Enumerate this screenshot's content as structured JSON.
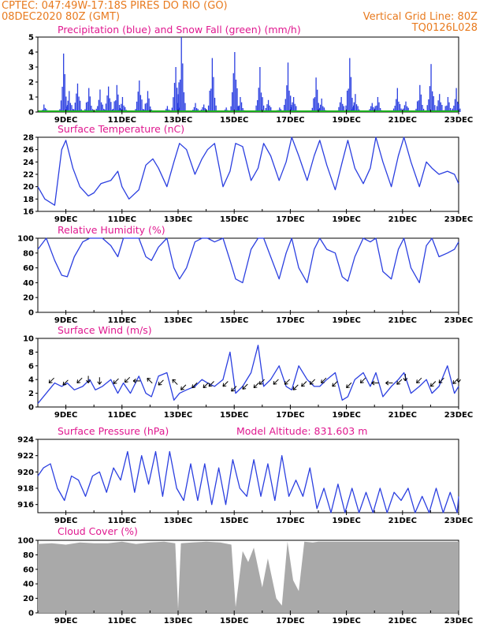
{
  "header": {
    "line1_left": "CPTEC:   047:49W-17:18S   PIRES DO RIO (GO)",
    "line2_left": "08DEC2020 80Z (GMT)",
    "line2_right": "Vertical Grid Line: 80Z",
    "line3_right": "TQ0126L028"
  },
  "colors": {
    "header": "#e87a1e",
    "title": "#e0188f",
    "line": "#2b3fe0",
    "bar": "#2b3fe0",
    "snow": "#1cb01c",
    "cloud": "#a9a9a9"
  },
  "x_ticks": [
    "9DEC",
    "11DEC",
    "13DEC",
    "15DEC",
    "17DEC",
    "19DEC",
    "21DEC",
    "23DEC"
  ],
  "chart_data": [
    {
      "type": "bar",
      "title": "Precipitation (blue) and Snow Fall (green) (mm/h)",
      "ylim": [
        0,
        5
      ],
      "yticks": [
        "0",
        "1",
        "2",
        "3",
        "4",
        "5"
      ],
      "series": [
        {
          "name": "Precipitation",
          "peaks": [
            [
              8.2,
              0.5
            ],
            [
              8.9,
              3.9
            ],
            [
              9.1,
              1.4
            ],
            [
              9.4,
              1.9
            ],
            [
              9.8,
              1.6
            ],
            [
              10.2,
              1.5
            ],
            [
              10.5,
              1.7
            ],
            [
              10.8,
              1.8
            ],
            [
              11.0,
              1.0
            ],
            [
              11.6,
              2.1
            ],
            [
              11.9,
              1.4
            ],
            [
              12.6,
              0.4
            ],
            [
              12.9,
              3.0
            ],
            [
              13.1,
              5.0
            ],
            [
              13.6,
              0.6
            ],
            [
              13.9,
              0.5
            ],
            [
              14.2,
              3.6
            ],
            [
              14.7,
              0.3
            ],
            [
              15.0,
              4.0
            ],
            [
              15.2,
              1.0
            ],
            [
              15.9,
              3.0
            ],
            [
              16.2,
              0.8
            ],
            [
              16.6,
              0.3
            ],
            [
              16.9,
              3.3
            ],
            [
              17.1,
              1.0
            ],
            [
              17.9,
              2.3
            ],
            [
              18.1,
              0.9
            ],
            [
              18.8,
              1.0
            ],
            [
              19.1,
              3.6
            ],
            [
              19.3,
              1.2
            ],
            [
              19.9,
              0.6
            ],
            [
              20.1,
              1.0
            ],
            [
              20.8,
              1.6
            ],
            [
              21.1,
              0.7
            ],
            [
              21.6,
              1.8
            ],
            [
              22.0,
              3.2
            ],
            [
              22.3,
              1.2
            ],
            [
              22.6,
              1.0
            ],
            [
              22.9,
              1.6
            ]
          ]
        },
        {
          "name": "Snow Fall",
          "values": [
            0
          ]
        }
      ]
    },
    {
      "type": "line",
      "title": "Surface Temperature (nC)",
      "ylim": [
        16,
        28
      ],
      "yticks": [
        "16",
        "18",
        "20",
        "22",
        "24",
        "26",
        "28"
      ],
      "series": [
        {
          "name": "Temperature",
          "x": [
            8.0,
            8.25,
            8.6,
            8.85,
            9.0,
            9.25,
            9.5,
            9.8,
            10.0,
            10.25,
            10.6,
            10.85,
            11.0,
            11.25,
            11.6,
            11.85,
            12.1,
            12.3,
            12.6,
            12.85,
            13.05,
            13.3,
            13.6,
            13.85,
            14.05,
            14.3,
            14.6,
            14.85,
            15.05,
            15.3,
            15.6,
            15.85,
            16.05,
            16.3,
            16.6,
            16.85,
            17.05,
            17.3,
            17.6,
            17.85,
            18.05,
            18.3,
            18.6,
            18.85,
            19.05,
            19.3,
            19.6,
            19.85,
            20.05,
            20.3,
            20.6,
            20.85,
            21.05,
            21.3,
            21.6,
            21.85,
            22.05,
            22.3,
            22.6,
            22.85,
            23.0
          ],
          "values": [
            20,
            18,
            17,
            26,
            27.5,
            23,
            20,
            18.5,
            19,
            20.5,
            21,
            22.5,
            20,
            18,
            19.5,
            23.5,
            24.5,
            23,
            20,
            24,
            27,
            26,
            22,
            24.5,
            26,
            27,
            20,
            22.5,
            27,
            26.5,
            21,
            23,
            27,
            25,
            21,
            24,
            28,
            25,
            21,
            25,
            27.5,
            23.5,
            19.5,
            24,
            27.5,
            23,
            20.5,
            23,
            28,
            24,
            20,
            25,
            28,
            24,
            20,
            24,
            23,
            22,
            22.5,
            22,
            20.5
          ]
        }
      ]
    },
    {
      "type": "line",
      "title": "Relative Humidity (%)",
      "ylim": [
        0,
        100
      ],
      "yticks": [
        "0",
        "20",
        "40",
        "60",
        "80",
        "100"
      ],
      "series": [
        {
          "name": "Relative Humidity",
          "x": [
            8.0,
            8.3,
            8.6,
            8.85,
            9.05,
            9.3,
            9.6,
            9.85,
            10.05,
            10.3,
            10.6,
            10.85,
            11.05,
            11.3,
            11.6,
            11.85,
            12.05,
            12.3,
            12.6,
            12.85,
            13.05,
            13.3,
            13.6,
            13.85,
            14.05,
            14.3,
            14.6,
            14.85,
            15.05,
            15.3,
            15.6,
            15.85,
            16.05,
            16.3,
            16.6,
            16.85,
            17.05,
            17.3,
            17.6,
            17.85,
            18.05,
            18.3,
            18.6,
            18.85,
            19.05,
            19.3,
            19.6,
            19.85,
            20.05,
            20.3,
            20.6,
            20.85,
            21.05,
            21.3,
            21.6,
            21.85,
            22.05,
            22.3,
            22.6,
            22.85,
            23.0
          ],
          "values": [
            85,
            100,
            70,
            50,
            48,
            75,
            95,
            100,
            100,
            100,
            90,
            75,
            100,
            100,
            100,
            75,
            70,
            88,
            100,
            60,
            45,
            60,
            95,
            100,
            100,
            95,
            100,
            70,
            45,
            40,
            85,
            100,
            100,
            75,
            45,
            80,
            100,
            60,
            40,
            85,
            100,
            85,
            80,
            48,
            42,
            75,
            100,
            95,
            100,
            55,
            45,
            85,
            100,
            60,
            40,
            90,
            100,
            75,
            80,
            85,
            95
          ]
        }
      ]
    },
    {
      "type": "line",
      "title": "Surface Wind (m/s)",
      "ylim": [
        0,
        10
      ],
      "yticks": [
        "0",
        "2",
        "4",
        "6",
        "8",
        "10"
      ],
      "series": [
        {
          "name": "Wind Speed",
          "x": [
            8.0,
            8.3,
            8.6,
            8.85,
            9.05,
            9.3,
            9.6,
            9.85,
            10.05,
            10.3,
            10.6,
            10.85,
            11.05,
            11.3,
            11.6,
            11.85,
            12.05,
            12.3,
            12.6,
            12.85,
            13.05,
            13.3,
            13.6,
            13.85,
            14.05,
            14.3,
            14.6,
            14.85,
            15.05,
            15.3,
            15.6,
            15.85,
            16.05,
            16.3,
            16.6,
            16.85,
            17.05,
            17.3,
            17.6,
            17.85,
            18.05,
            18.3,
            18.6,
            18.85,
            19.05,
            19.3,
            19.6,
            19.85,
            20.05,
            20.3,
            20.6,
            20.85,
            21.05,
            21.3,
            21.6,
            21.85,
            22.05,
            22.3,
            22.6,
            22.85,
            23.0
          ],
          "values": [
            0.5,
            2,
            3.5,
            3,
            3.5,
            2.5,
            3,
            4,
            2.5,
            3,
            4,
            2,
            3.5,
            2,
            4.5,
            2,
            1.5,
            4.5,
            5,
            1,
            2,
            2.5,
            3,
            4,
            3.5,
            3,
            4,
            8,
            2,
            3,
            5,
            9,
            3,
            4,
            6,
            3,
            2.5,
            6,
            4,
            3,
            3,
            4,
            5,
            1,
            1.5,
            4,
            5,
            3,
            5,
            1.5,
            3,
            4,
            5,
            2,
            3,
            4,
            2,
            3,
            6,
            2,
            3
          ]
        },
        {
          "name": "Wind Direction",
          "arrows": [
            [
              8.4,
              3.5,
              "sw"
            ],
            [
              8.9,
              3.2,
              "sw"
            ],
            [
              9.4,
              3.5,
              "sw"
            ],
            [
              9.8,
              3.5,
              "s"
            ],
            [
              10.2,
              3.3,
              "s"
            ],
            [
              10.7,
              3.4,
              "sw"
            ],
            [
              11.1,
              3.6,
              "sw"
            ],
            [
              11.4,
              3.8,
              "w"
            ],
            [
              11.9,
              4.2,
              "nw"
            ],
            [
              12.3,
              3.2,
              "sw"
            ],
            [
              12.8,
              4.0,
              "nw"
            ],
            [
              13.1,
              2.5,
              "sw"
            ],
            [
              13.5,
              2.8,
              "sw"
            ],
            [
              13.9,
              2.8,
              "sw"
            ],
            [
              14.1,
              3.0,
              "sw"
            ],
            [
              14.6,
              3.0,
              "sw"
            ],
            [
              14.9,
              2.3,
              "sw"
            ],
            [
              15.3,
              2.6,
              "sw"
            ],
            [
              15.7,
              2.8,
              "sw"
            ],
            [
              15.9,
              3.3,
              "sw"
            ],
            [
              16.4,
              3.3,
              "sw"
            ],
            [
              16.8,
              3.3,
              "sw"
            ],
            [
              17.1,
              2.5,
              "sw"
            ],
            [
              17.4,
              3.0,
              "sw"
            ],
            [
              17.7,
              3.3,
              "sw"
            ],
            [
              18.1,
              3.5,
              "sw"
            ],
            [
              18.5,
              3.0,
              "sw"
            ],
            [
              19.0,
              2.8,
              "sw"
            ],
            [
              19.5,
              3.5,
              "sw"
            ],
            [
              19.9,
              3.5,
              "w"
            ],
            [
              20.4,
              3.5,
              "w"
            ],
            [
              20.8,
              3.3,
              "sw"
            ],
            [
              21.1,
              3.8,
              "s"
            ],
            [
              21.5,
              3.5,
              "sw"
            ],
            [
              22.0,
              3.0,
              "sw"
            ],
            [
              22.3,
              3.5,
              "sw"
            ],
            [
              22.8,
              3.4,
              "sw"
            ],
            [
              23.0,
              3.6,
              "s"
            ]
          ]
        }
      ]
    },
    {
      "type": "line",
      "title": "Surface Pressure (hPa)",
      "annotation": "Model Altitude: 831.603 m",
      "ylim": [
        915,
        924
      ],
      "yticks": [
        "916",
        "918",
        "920",
        "922",
        "924"
      ],
      "series": [
        {
          "name": "Pressure",
          "x": [
            8.0,
            8.2,
            8.45,
            8.7,
            8.95,
            9.2,
            9.45,
            9.7,
            9.95,
            10.2,
            10.45,
            10.7,
            10.95,
            11.2,
            11.45,
            11.7,
            11.95,
            12.2,
            12.45,
            12.7,
            12.95,
            13.2,
            13.45,
            13.7,
            13.95,
            14.2,
            14.45,
            14.7,
            14.95,
            15.2,
            15.45,
            15.7,
            15.95,
            16.2,
            16.45,
            16.7,
            16.95,
            17.2,
            17.45,
            17.7,
            17.95,
            18.2,
            18.45,
            18.7,
            18.95,
            19.2,
            19.45,
            19.7,
            19.95,
            20.2,
            20.45,
            20.7,
            20.95,
            21.2,
            21.45,
            21.7,
            21.95,
            22.2,
            22.45,
            22.7,
            22.95,
            23.0
          ],
          "values": [
            919.5,
            920.5,
            921,
            918,
            916.5,
            919.5,
            919,
            917,
            919.5,
            920,
            917.5,
            920.5,
            919,
            922.5,
            917.5,
            922,
            918.5,
            922.5,
            917,
            922.5,
            918,
            916.5,
            921,
            916.5,
            921,
            916,
            920.5,
            916,
            921.5,
            918,
            917,
            921.5,
            917,
            921,
            916.5,
            922,
            917,
            919,
            917,
            920.5,
            915.5,
            918,
            915,
            918.5,
            915,
            918,
            915,
            917.5,
            915,
            918,
            915,
            917.5,
            916.5,
            918,
            915,
            917,
            914.5,
            918,
            914.5,
            917.5,
            915,
            917
          ]
        }
      ]
    },
    {
      "type": "area",
      "title": "Cloud Cover (%)",
      "ylim": [
        0,
        100
      ],
      "yticks": [
        "0",
        "20",
        "40",
        "60",
        "80",
        "100"
      ],
      "series": [
        {
          "name": "Cloud Cover",
          "x": [
            8.0,
            8.5,
            9.0,
            9.5,
            10.0,
            10.5,
            11.0,
            11.5,
            12.0,
            12.5,
            12.9,
            13.0,
            13.1,
            13.5,
            14.0,
            14.5,
            14.9,
            15.05,
            15.3,
            15.5,
            15.7,
            16.0,
            16.2,
            16.5,
            16.7,
            16.9,
            17.1,
            17.3,
            17.5,
            17.8,
            18.0,
            18.5,
            19.0,
            19.5,
            20.0,
            20.5,
            21.0,
            21.5,
            22.0,
            22.5,
            23.0
          ],
          "values": [
            95,
            96,
            94,
            97,
            96,
            96,
            98,
            95,
            97,
            98,
            96,
            5,
            96,
            97,
            98,
            97,
            94,
            8,
            85,
            70,
            90,
            35,
            75,
            20,
            10,
            98,
            45,
            30,
            98,
            97,
            98,
            98,
            98,
            98,
            98,
            98,
            98,
            98,
            98,
            98,
            98
          ]
        }
      ]
    }
  ]
}
